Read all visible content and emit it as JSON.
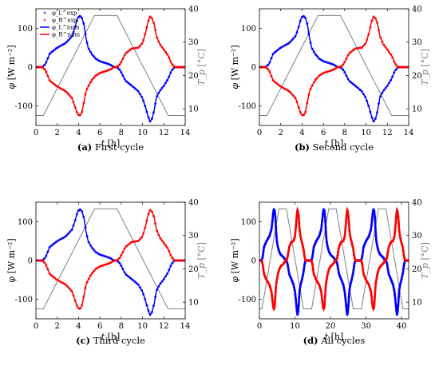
{
  "chart_data": [
    {
      "type": "line",
      "caption_label": "(a)",
      "caption_text": "First cycle",
      "xlabel": "t [h]",
      "ylabel": "φ [W m⁻²]",
      "y2label": "T_p [°C]",
      "xlim": [
        0,
        14
      ],
      "ylim": [
        -150,
        150
      ],
      "y2lim": [
        5,
        40
      ],
      "xticks": [
        0,
        2,
        4,
        6,
        8,
        10,
        12,
        14
      ],
      "yticks": [
        -100,
        0,
        100
      ],
      "y2ticks": [
        10,
        20,
        30,
        40
      ],
      "legend": {
        "position": "top-left",
        "entries": [
          "φ_L^exp",
          "φ_R^exp",
          "φ_L^num",
          "φ_R^num"
        ]
      },
      "series": [
        {
          "name": "φ_L",
          "color": "#0000ff",
          "axis": "left",
          "cycles": 1,
          "shape": "L"
        },
        {
          "name": "φ_R",
          "color": "#ff0000",
          "axis": "left",
          "cycles": 1,
          "shape": "R"
        },
        {
          "name": "T_p",
          "color": "#808080",
          "axis": "right",
          "cycles": 1,
          "x": [
            0,
            0.7,
            5.5,
            7.6,
            12.4,
            14
          ],
          "y": [
            8,
            8,
            38,
            38,
            8,
            8
          ]
        }
      ]
    },
    {
      "type": "line",
      "caption_label": "(b)",
      "caption_text": "Second cycle",
      "xlabel": "t [h]",
      "ylabel": "φ [W m⁻²]",
      "y2label": "T_p [°C]",
      "xlim": [
        0,
        14
      ],
      "ylim": [
        -150,
        150
      ],
      "y2lim": [
        5,
        40
      ],
      "xticks": [
        0,
        2,
        4,
        6,
        8,
        10,
        12,
        14
      ],
      "yticks": [
        -100,
        0,
        100
      ],
      "y2ticks": [
        10,
        20,
        30,
        40
      ],
      "series": [
        {
          "name": "φ_L",
          "color": "#0000ff",
          "axis": "left",
          "cycles": 1,
          "shape": "L"
        },
        {
          "name": "φ_R",
          "color": "#ff0000",
          "axis": "left",
          "cycles": 1,
          "shape": "R"
        },
        {
          "name": "T_p",
          "color": "#808080",
          "axis": "right",
          "cycles": 1,
          "x": [
            0,
            0.7,
            5.5,
            7.6,
            12.4,
            14
          ],
          "y": [
            8,
            8,
            38,
            38,
            8,
            8
          ]
        }
      ]
    },
    {
      "type": "line",
      "caption_label": "(c)",
      "caption_text": "Third cycle",
      "xlabel": "t [h]",
      "ylabel": "φ [W m⁻²]",
      "y2label": "T_p [°C]",
      "xlim": [
        0,
        14
      ],
      "ylim": [
        -150,
        150
      ],
      "y2lim": [
        5,
        40
      ],
      "xticks": [
        0,
        2,
        4,
        6,
        8,
        10,
        12,
        14
      ],
      "yticks": [
        -100,
        0,
        100
      ],
      "y2ticks": [
        10,
        20,
        30,
        40
      ],
      "series": [
        {
          "name": "φ_L",
          "color": "#0000ff",
          "axis": "left",
          "cycles": 1,
          "shape": "L"
        },
        {
          "name": "φ_R",
          "color": "#ff0000",
          "axis": "left",
          "cycles": 1,
          "shape": "R"
        },
        {
          "name": "T_p",
          "color": "#808080",
          "axis": "right",
          "cycles": 1,
          "x": [
            0,
            0.7,
            5.5,
            7.6,
            12.4,
            14
          ],
          "y": [
            8,
            8,
            38,
            38,
            8,
            8
          ]
        }
      ]
    },
    {
      "type": "line",
      "caption_label": "(d)",
      "caption_text": "All cycles",
      "xlabel": "t [h]",
      "ylabel": "φ [W m⁻²]",
      "y2label": "T_p [°C]",
      "xlim": [
        0,
        42
      ],
      "ylim": [
        -150,
        150
      ],
      "y2lim": [
        5,
        40
      ],
      "xticks": [
        0,
        10,
        20,
        30,
        40
      ],
      "yticks": [
        -100,
        0,
        100
      ],
      "y2ticks": [
        10,
        20,
        30,
        40
      ],
      "series": [
        {
          "name": "φ_L",
          "color": "#0000ff",
          "axis": "left",
          "cycles": 3,
          "shape": "L"
        },
        {
          "name": "φ_R",
          "color": "#ff0000",
          "axis": "left",
          "cycles": 3,
          "shape": "R"
        },
        {
          "name": "T_p",
          "color": "#808080",
          "axis": "right",
          "cycles": 3,
          "x": [
            0,
            0.7,
            5.5,
            7.6,
            12.4,
            14
          ],
          "y": [
            8,
            8,
            38,
            38,
            8,
            8
          ]
        }
      ]
    }
  ],
  "flux_profile": {
    "t": [
      0,
      0.6,
      0.9,
      1.3,
      2.0,
      2.8,
      3.4,
      3.7,
      3.9,
      4.1,
      4.3,
      4.5,
      4.7,
      4.9,
      5.2,
      5.6,
      6.0,
      6.6,
      7.0,
      7.3,
      7.6,
      7.9,
      8.4,
      9.0,
      9.6,
      10.0,
      10.3,
      10.5,
      10.7,
      10.9,
      11.1,
      11.3,
      11.6,
      12.0,
      12.4,
      12.7,
      13.0,
      14.0
    ],
    "L": [
      0,
      0,
      8,
      35,
      50,
      62,
      80,
      105,
      125,
      132,
      128,
      110,
      75,
      50,
      35,
      22,
      15,
      10,
      6,
      0,
      0,
      -8,
      -35,
      -48,
      -62,
      -80,
      -105,
      -125,
      -140,
      -132,
      -110,
      -78,
      -62,
      -48,
      -30,
      -10,
      0,
      0
    ],
    "R": [
      0,
      0,
      -8,
      -35,
      -50,
      -62,
      -80,
      -105,
      -120,
      -125,
      -118,
      -90,
      -62,
      -50,
      -35,
      -22,
      -15,
      -10,
      -6,
      0,
      0,
      8,
      35,
      48,
      50,
      62,
      90,
      115,
      130,
      125,
      110,
      80,
      60,
      45,
      30,
      10,
      0,
      0
    ]
  }
}
